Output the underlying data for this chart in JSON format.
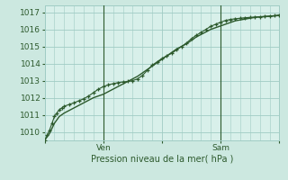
{
  "title": "",
  "xlabel": "Pression niveau de la mer( hPa )",
  "ylabel": "",
  "bg_color": "#cce8e0",
  "plot_bg_color": "#d8f0ea",
  "grid_color": "#a0ccC4",
  "line_color": "#2d5a2d",
  "marker_color": "#2d5a2d",
  "ylim": [
    1009.5,
    1017.4
  ],
  "xlim": [
    0,
    48
  ],
  "yticks": [
    1010,
    1011,
    1012,
    1013,
    1014,
    1015,
    1016,
    1017
  ],
  "xtick_positions": [
    12,
    36
  ],
  "xtick_labels": [
    "Ven",
    "Sam"
  ],
  "vline_positions": [
    12,
    36
  ],
  "line1_x": [
    0,
    0.5,
    1,
    1.5,
    2,
    2.5,
    3,
    3.5,
    4,
    5,
    6,
    7,
    8,
    9,
    10,
    11,
    12,
    13,
    14,
    15,
    16,
    17,
    18,
    19,
    20,
    21,
    22,
    23,
    24,
    25,
    26,
    27,
    28,
    29,
    30,
    31,
    32,
    33,
    34,
    35,
    36,
    37,
    38,
    39,
    40,
    41,
    42,
    43,
    44,
    45,
    46,
    47,
    48
  ],
  "line1_y": [
    1009.5,
    1009.7,
    1009.9,
    1010.2,
    1010.5,
    1010.7,
    1010.9,
    1011.0,
    1011.1,
    1011.25,
    1011.4,
    1011.55,
    1011.7,
    1011.85,
    1012.0,
    1012.1,
    1012.2,
    1012.35,
    1012.5,
    1012.65,
    1012.8,
    1012.95,
    1013.1,
    1013.25,
    1013.45,
    1013.65,
    1013.85,
    1014.05,
    1014.25,
    1014.45,
    1014.65,
    1014.85,
    1015.0,
    1015.15,
    1015.35,
    1015.55,
    1015.7,
    1015.85,
    1016.0,
    1016.1,
    1016.2,
    1016.3,
    1016.4,
    1016.5,
    1016.55,
    1016.6,
    1016.65,
    1016.7,
    1016.72,
    1016.74,
    1016.76,
    1016.78,
    1016.82
  ],
  "line2_x": [
    0,
    0.5,
    1,
    1.5,
    2,
    2.5,
    3,
    3.5,
    4,
    5,
    6,
    7,
    8,
    9,
    10,
    11,
    12,
    13,
    14,
    15,
    16,
    17,
    18,
    19,
    20,
    21,
    22,
    23,
    24,
    25,
    26,
    27,
    28,
    29,
    30,
    31,
    32,
    33,
    34,
    35,
    36,
    37,
    38,
    39,
    40,
    41,
    42,
    43,
    44,
    45,
    46,
    47,
    48
  ],
  "line2_y": [
    1009.5,
    1009.8,
    1010.1,
    1010.5,
    1010.9,
    1011.1,
    1011.3,
    1011.4,
    1011.5,
    1011.6,
    1011.7,
    1011.82,
    1011.94,
    1012.1,
    1012.3,
    1012.5,
    1012.65,
    1012.75,
    1012.82,
    1012.88,
    1012.92,
    1012.95,
    1013.0,
    1013.1,
    1013.3,
    1013.6,
    1013.9,
    1014.1,
    1014.3,
    1014.45,
    1014.6,
    1014.8,
    1015.0,
    1015.2,
    1015.45,
    1015.65,
    1015.82,
    1016.0,
    1016.18,
    1016.3,
    1016.42,
    1016.52,
    1016.58,
    1016.62,
    1016.65,
    1016.68,
    1016.7,
    1016.72,
    1016.74,
    1016.76,
    1016.78,
    1016.8,
    1016.84
  ]
}
